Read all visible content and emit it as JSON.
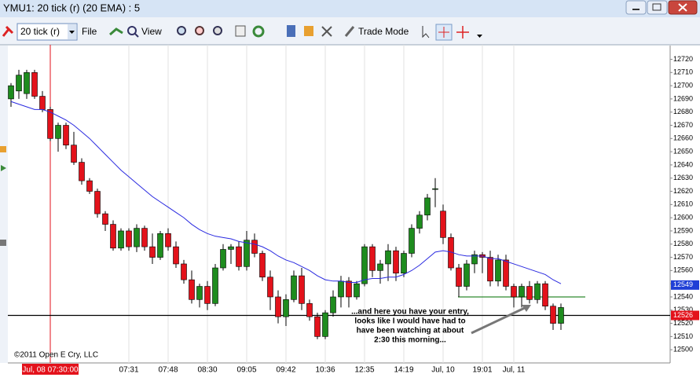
{
  "window": {
    "title": "YMU1: 20 tick (r) (20 EMA) : 5"
  },
  "toolbar": {
    "interval": "20 tick (r)",
    "file": "File",
    "view": "View",
    "trade_mode": "Trade Mode"
  },
  "chart_data": {
    "type": "candlestick",
    "categories": [
      null,
      null,
      null,
      null,
      null,
      "Jul, 08 07:30:00",
      null,
      null,
      null,
      null,
      null,
      null,
      null,
      null,
      null,
      "07:31",
      null,
      null,
      null,
      null,
      "07:48",
      null,
      null,
      null,
      null,
      "08:30",
      null,
      null,
      null,
      null,
      "09:05",
      null,
      null,
      null,
      null,
      "09:42",
      null,
      null,
      null,
      null,
      "10:36",
      null,
      null,
      null,
      null,
      "12:35",
      null,
      null,
      null,
      null,
      "14:19",
      null,
      null,
      null,
      null,
      "Jul, 10",
      null,
      null,
      null,
      null,
      "19:01",
      null,
      null,
      null,
      "Jul, 11",
      null,
      null,
      null,
      null,
      null,
      null
    ],
    "open": [
      12690,
      12696,
      12694,
      12710,
      12692,
      12682,
      12660,
      12670,
      12655,
      12642,
      12628,
      12620,
      12603,
      12595,
      12577,
      12590,
      12578,
      12592,
      12578,
      12570,
      12588,
      12578,
      12565,
      12553,
      12538,
      12548,
      12535,
      12562,
      12576,
      12578,
      12563,
      12583,
      12573,
      12555,
      12540,
      12525,
      12538,
      12556,
      12535,
      12525,
      12510,
      12528,
      12540,
      12552,
      12540,
      12550,
      12578,
      12560,
      12565,
      12575,
      12558,
      12573,
      12592,
      12602,
      12622,
      12605,
      12585,
      12562,
      12548,
      12565,
      12572,
      12570,
      12552,
      12568,
      12548,
      12540,
      12548,
      12538,
      12550,
      12533,
      12520
    ],
    "high": [
      12702,
      12712,
      12712,
      12712,
      12696,
      12684,
      12672,
      12672,
      12665,
      12645,
      12630,
      12622,
      12605,
      12598,
      12592,
      12592,
      12595,
      12594,
      12588,
      12590,
      12592,
      12582,
      12568,
      12560,
      12550,
      12552,
      12565,
      12580,
      12580,
      12582,
      12590,
      12588,
      12575,
      12560,
      12545,
      12542,
      12560,
      12562,
      12538,
      12528,
      12530,
      12545,
      12556,
      12555,
      12552,
      12580,
      12580,
      12568,
      12580,
      12578,
      12575,
      12595,
      12605,
      12618,
      12630,
      12610,
      12588,
      12565,
      12568,
      12575,
      12574,
      12575,
      12572,
      12572,
      12550,
      12550,
      12552,
      12552,
      12552,
      12535,
      12535
    ],
    "low": [
      12684,
      12690,
      12690,
      12690,
      12680,
      12658,
      12650,
      12652,
      12640,
      12625,
      12618,
      12600,
      12590,
      12575,
      12575,
      12575,
      12574,
      12575,
      12565,
      12568,
      12575,
      12562,
      12550,
      12535,
      12532,
      12530,
      12533,
      12560,
      12565,
      12560,
      12560,
      12570,
      12552,
      12530,
      12520,
      12518,
      12536,
      12530,
      12522,
      12508,
      12508,
      12525,
      12532,
      12532,
      12538,
      12548,
      12555,
      12550,
      12552,
      12552,
      12555,
      12570,
      12588,
      12598,
      12608,
      12580,
      12560,
      12540,
      12545,
      12558,
      12558,
      12548,
      12548,
      12545,
      12532,
      12532,
      12535,
      12535,
      12530,
      12515,
      12515
    ],
    "close": [
      12700,
      12708,
      12710,
      12692,
      12682,
      12660,
      12670,
      12655,
      12642,
      12628,
      12620,
      12603,
      12595,
      12577,
      12590,
      12578,
      12592,
      12578,
      12570,
      12588,
      12578,
      12565,
      12553,
      12538,
      12548,
      12535,
      12562,
      12576,
      12578,
      12563,
      12583,
      12573,
      12555,
      12540,
      12525,
      12538,
      12556,
      12535,
      12525,
      12510,
      12528,
      12540,
      12552,
      12540,
      12550,
      12578,
      12560,
      12565,
      12575,
      12558,
      12573,
      12592,
      12602,
      12615,
      12622,
      12585,
      12562,
      12548,
      12565,
      12572,
      12570,
      12552,
      12568,
      12548,
      12540,
      12548,
      12538,
      12550,
      12533,
      12520,
      12532
    ],
    "up_color": "#1e8c1e",
    "down_color": "#e3121b",
    "ema": {
      "color": "#2a2ae0",
      "values": [
        12688,
        12686,
        12684,
        12682,
        12682,
        12680,
        12677,
        12674,
        12670,
        12665,
        12660,
        12654,
        12648,
        12642,
        12636,
        12631,
        12626,
        12621,
        12616,
        12612,
        12608,
        12604,
        12600,
        12595,
        12591,
        12588,
        12586,
        12585,
        12584,
        12582,
        12581,
        12580,
        12578,
        12575,
        12571,
        12568,
        12566,
        12563,
        12560,
        12556,
        12553,
        12552,
        12552,
        12551,
        12551,
        12553,
        12554,
        12554,
        12555,
        12555,
        12557,
        12560,
        12564,
        12569,
        12574,
        12575,
        12574,
        12572,
        12571,
        12571,
        12571,
        12569,
        12569,
        12567,
        12565,
        12563,
        12561,
        12559,
        12557,
        12553,
        12550
      ]
    },
    "ylim": [
      12490,
      12731
    ],
    "yticks": [
      12500,
      12510,
      12520,
      12530,
      12540,
      12550,
      12560,
      12570,
      12580,
      12590,
      12600,
      12610,
      12620,
      12630,
      12640,
      12650,
      12660,
      12670,
      12680,
      12690,
      12700,
      12710,
      12720
    ],
    "hlines": [
      {
        "value": 12540,
        "color": "#2e8b2e"
      },
      {
        "value": 12526,
        "color": "#000000"
      }
    ],
    "price_markers": [
      {
        "value": 12549,
        "color": "#1f3fd6"
      },
      {
        "value": 12526,
        "color": "#e3121b"
      }
    ],
    "cursor_index": 5,
    "annotation": [
      "...and here you have your entry,",
      "looks like I would have had to",
      "have been watching at about",
      "2:30 this morning..."
    ],
    "copyright": "©2011 Open E Cry, LLC"
  }
}
